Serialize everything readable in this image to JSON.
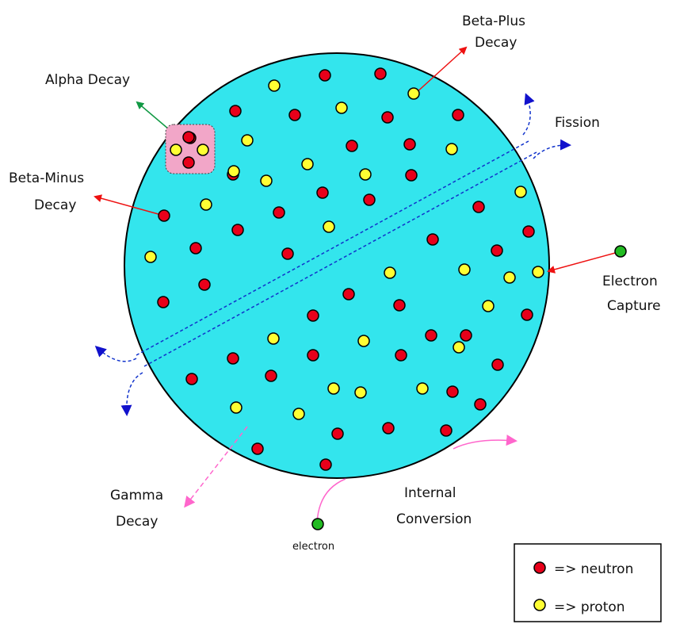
{
  "labels": {
    "beta_plus_line1": "Beta-Plus",
    "beta_plus_line2": "Decay",
    "alpha": "Alpha Decay",
    "fission": "Fission",
    "beta_minus_line1": "Beta-Minus",
    "beta_minus_line2": "Decay",
    "electron_capture_line1": "Electron",
    "electron_capture_line2": "Capture",
    "gamma_line1": "Gamma",
    "gamma_line2": "Decay",
    "internal_conversion_line1": "Internal",
    "internal_conversion_line2": "Conversion",
    "electron": "electron"
  },
  "legend": {
    "neutron_label": "=> neutron",
    "proton_label": "=> proton"
  },
  "colors": {
    "nucleus_fill": "#33e5ed",
    "neutron": "#e8001a",
    "proton": "#ffff33",
    "electron": "#22bb22",
    "alpha_box": "#f2a6c8",
    "arrow_red": "#ee1111",
    "arrow_green": "#119944",
    "arrow_blue": "#1111cc",
    "arrow_pink": "#ff55cc"
  }
}
